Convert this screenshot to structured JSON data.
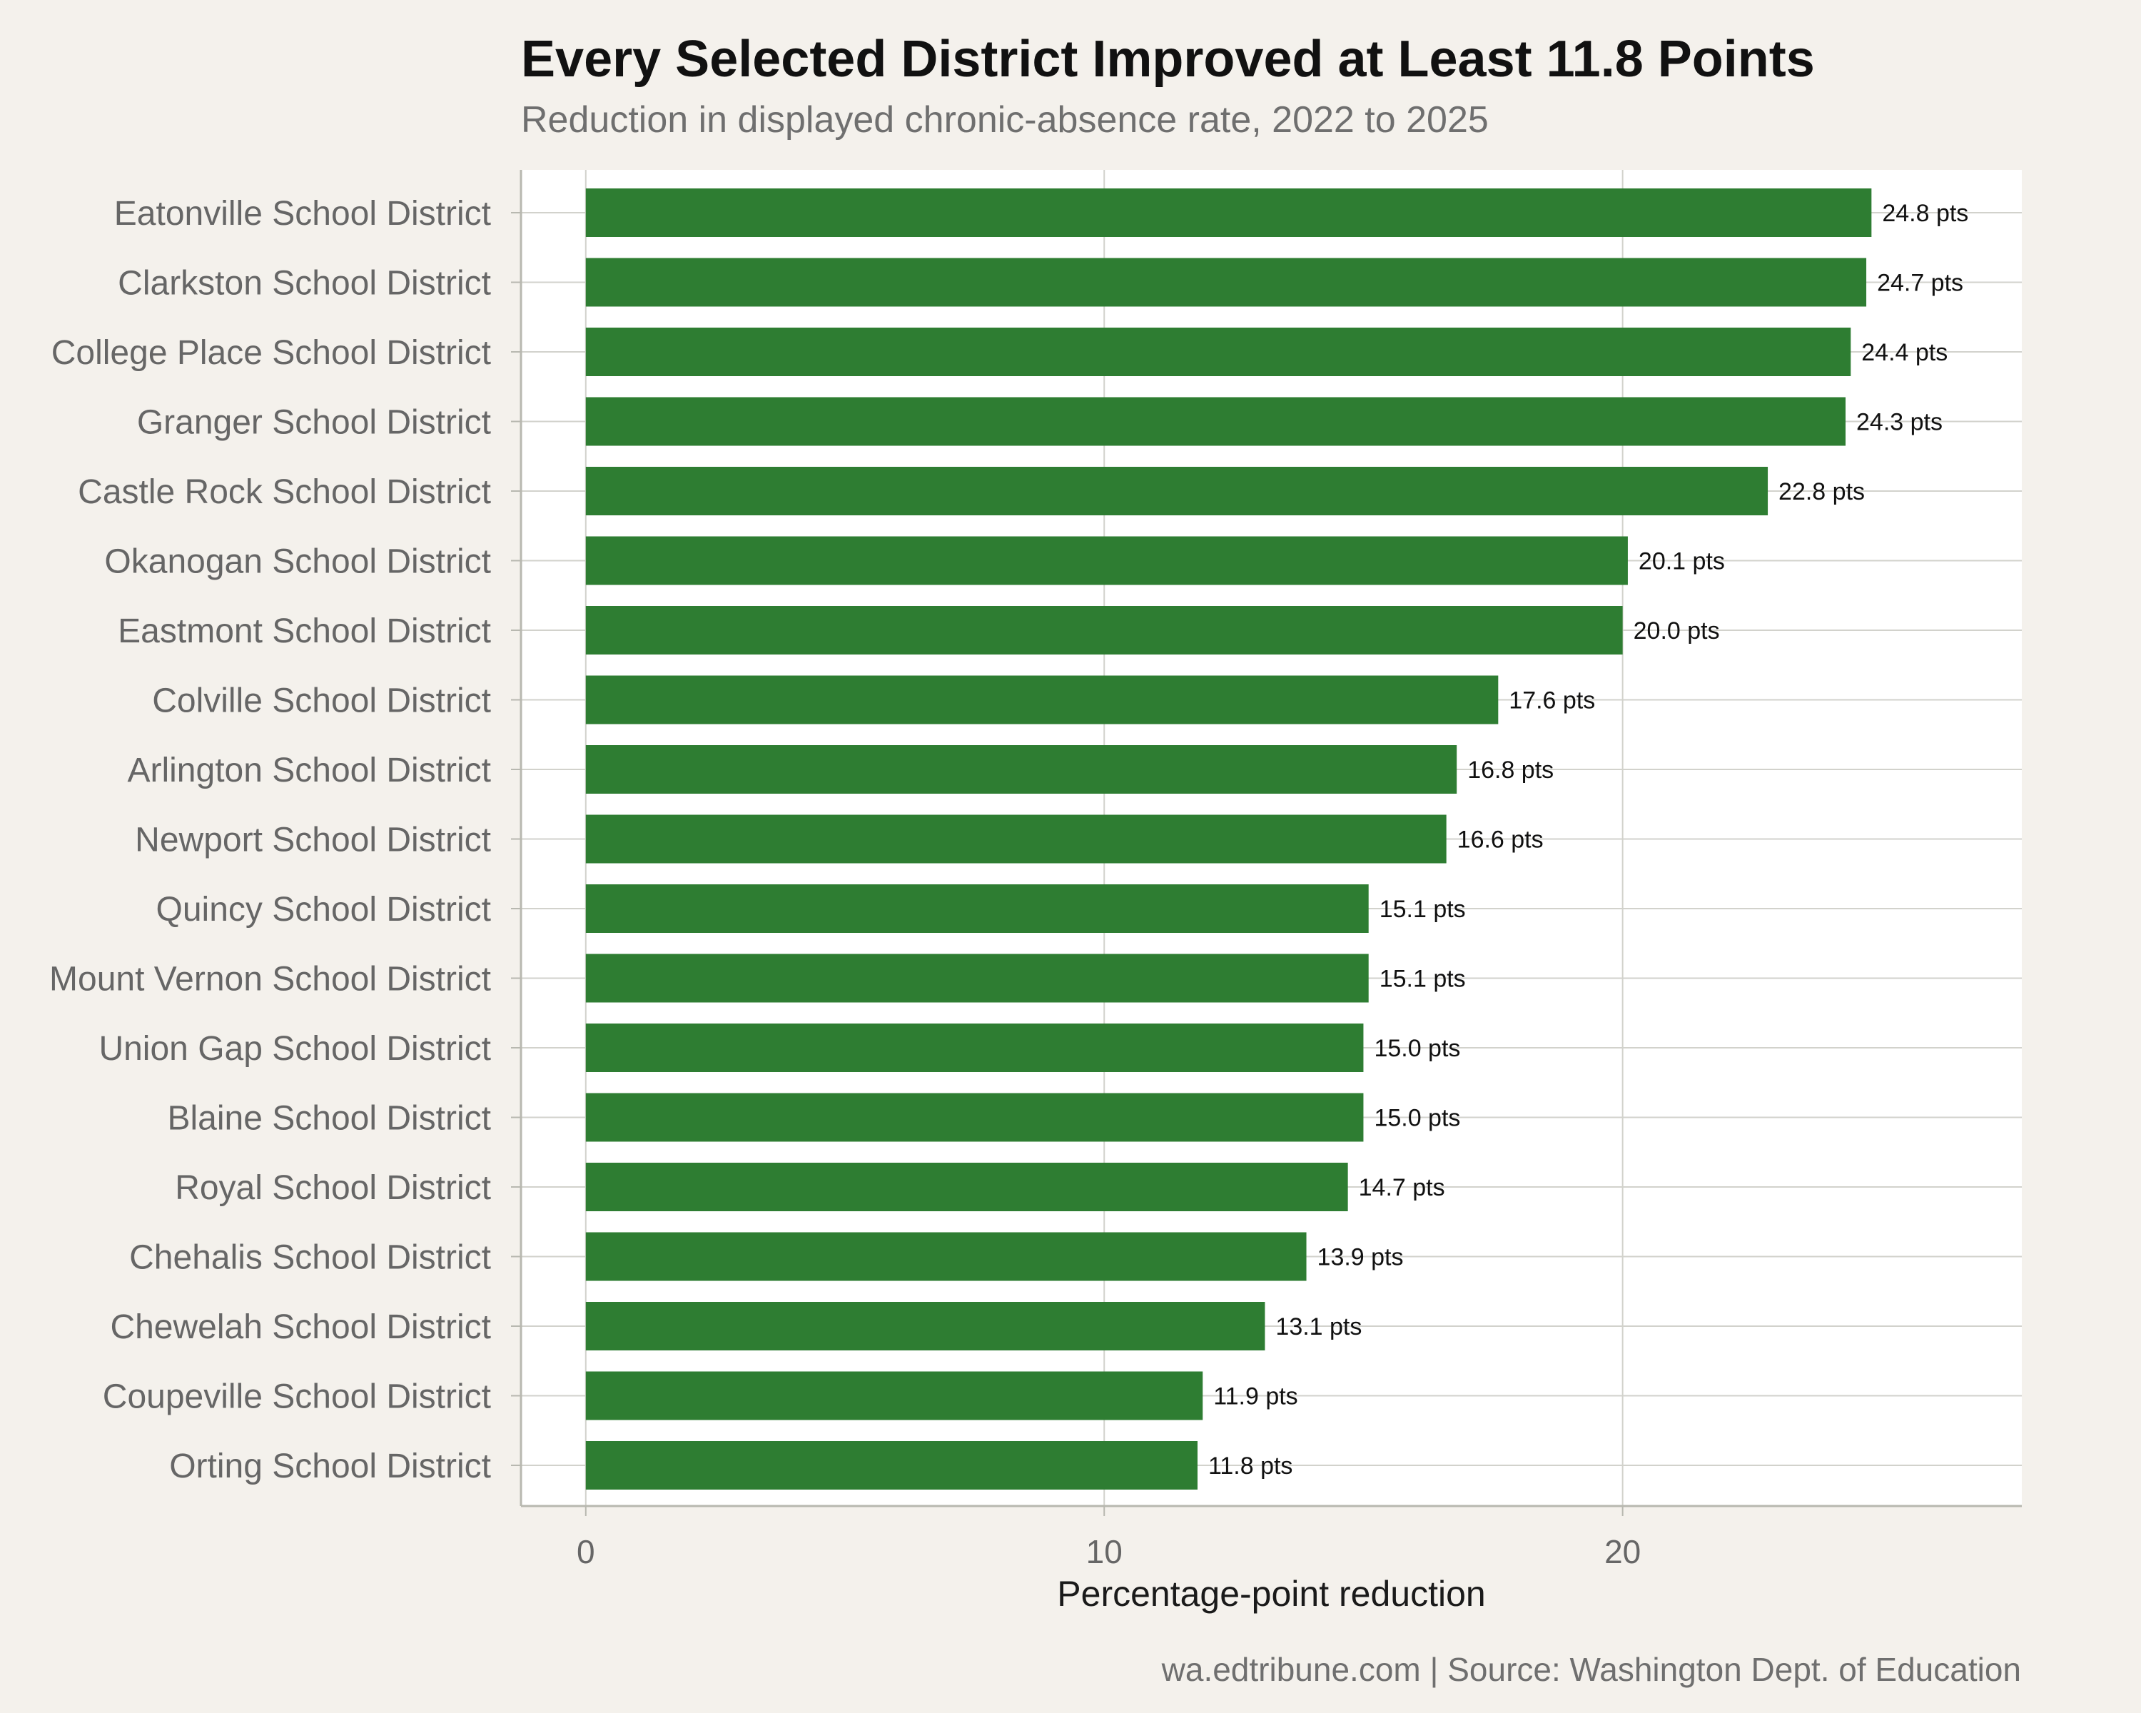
{
  "title": "Every Selected District Improved at Least 11.8 Points",
  "subtitle": "Reduction in displayed chronic-absence rate, 2022 to 2025",
  "caption": "wa.edtribune.com | Source: Washington Dept. of Education",
  "colors": {
    "bar": "#2e7d32",
    "panel": "#ffffff",
    "background": "#f4f1ec",
    "grid": "#d2d2cc",
    "axis_text": "#666666"
  },
  "chart_data": {
    "type": "bar",
    "orientation": "horizontal",
    "title": "Every Selected District Improved at Least 11.8 Points",
    "subtitle": "Reduction in displayed chronic-absence rate, 2022 to 2025",
    "xlabel": "Percentage-point reduction",
    "ylabel": "",
    "xlim": [
      -1.25,
      27.7
    ],
    "xticks": [
      0,
      10,
      20
    ],
    "value_suffix": " pts",
    "grid": true,
    "categories": [
      "Eatonville School District",
      "Clarkston School District",
      "College Place School District",
      "Granger School District",
      "Castle Rock School District",
      "Okanogan School District",
      "Eastmont School District",
      "Colville School District",
      "Arlington School District",
      "Newport School District",
      "Quincy School District",
      "Mount Vernon School District",
      "Union Gap School District",
      "Blaine School District",
      "Royal School District",
      "Chehalis School District",
      "Chewelah School District",
      "Coupeville School District",
      "Orting School District"
    ],
    "values": [
      24.8,
      24.7,
      24.4,
      24.3,
      22.8,
      20.1,
      20.0,
      17.6,
      16.8,
      16.6,
      15.1,
      15.1,
      15.0,
      15.0,
      14.7,
      13.9,
      13.1,
      11.9,
      11.8
    ]
  }
}
